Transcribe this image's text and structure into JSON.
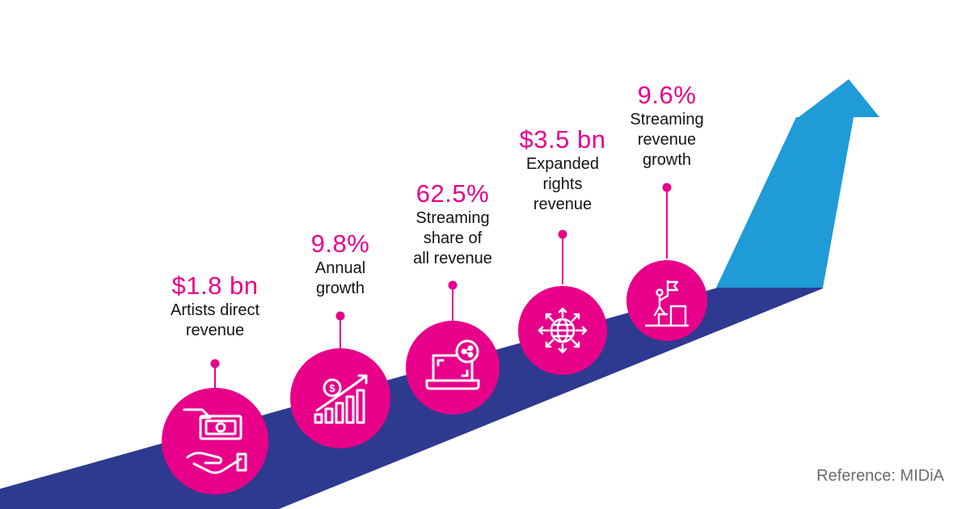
{
  "colors": {
    "accent": "#e8008a",
    "road": "#2e3a8f",
    "arrow": "#1f9bd7",
    "text": "#141414",
    "muted": "#6b6b6b"
  },
  "milestones": [
    {
      "value": "$1.8 bn",
      "lines": [
        "Artists direct",
        "revenue"
      ],
      "icon": "money-hand-icon"
    },
    {
      "value": "9.8%",
      "lines": [
        "Annual",
        "growth"
      ],
      "icon": "growth-chart-icon"
    },
    {
      "value": "62.5%",
      "lines": [
        "Streaming",
        "share of",
        "all revenue"
      ],
      "icon": "laptop-share-icon"
    },
    {
      "value": "$3.5 bn",
      "lines": [
        "Expanded",
        "rights",
        "revenue"
      ],
      "icon": "globe-arrows-icon"
    },
    {
      "value": "9.6%",
      "lines": [
        "Streaming",
        "revenue",
        "growth"
      ],
      "icon": "climber-flag-icon"
    }
  ],
  "reference": "Reference: MIDiA"
}
